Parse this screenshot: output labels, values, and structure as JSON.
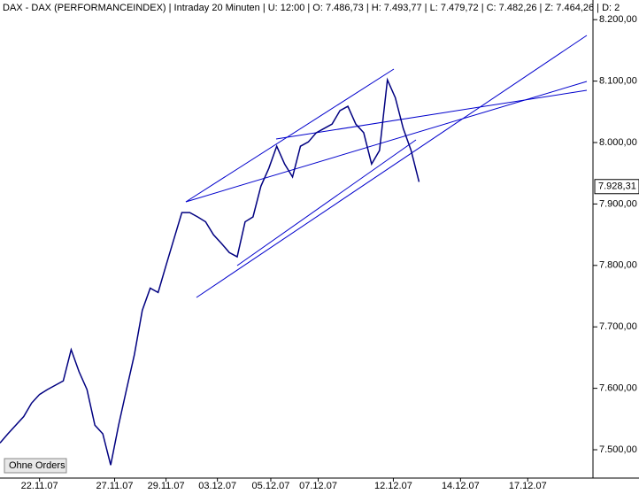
{
  "chart_data": {
    "type": "line",
    "title": "DAX - DAX (PERFORMANCEINDEX) | Intraday 20 Minuten | U: 12:00 | O: 7.486,73 | H: 7.493,77 | L: 7.479,72 | C: 7.482,26 | Z: 7.464,26 | D: 2",
    "button": "Ohne Orders",
    "x": [
      0,
      4,
      8,
      12,
      16,
      20,
      24,
      28,
      32,
      36,
      40,
      44,
      48,
      52,
      56,
      60,
      64,
      68,
      72,
      76,
      80,
      84,
      88,
      92,
      96,
      100,
      104,
      108,
      112,
      116,
      120,
      124,
      128,
      132,
      136,
      140,
      144,
      148,
      152,
      156,
      160,
      164,
      168,
      172,
      176,
      180,
      184,
      188,
      192,
      196,
      200,
      204,
      208,
      212
    ],
    "series": [
      {
        "name": "DAX",
        "color": "#000080",
        "values": [
          7511,
          7526,
          7540,
          7554,
          7576,
          7590,
          7598,
          7605,
          7612,
          7663,
          7627,
          7598,
          7540,
          7526,
          7475,
          7540,
          7598,
          7655,
          7727,
          7763,
          7756,
          7800,
          7843,
          7886,
          7886,
          7879,
          7871,
          7850,
          7836,
          7821,
          7814,
          7871,
          7879,
          7929,
          7958,
          7994,
          7965,
          7944,
          7994,
          8001,
          8016,
          8023,
          8030,
          8052,
          8059,
          8030,
          8016,
          7965,
          7987,
          8102,
          8073,
          8023,
          7987,
          7936
        ]
      }
    ],
    "last_value": {
      "value": 7928.31,
      "label": "7.928,31"
    },
    "xlim": [
      0,
      300
    ],
    "xticks": [
      {
        "value": 20,
        "label": "22.11.07"
      },
      {
        "value": 58,
        "label": "27.11.07"
      },
      {
        "value": 84,
        "label": "29.11.07"
      },
      {
        "value": 110,
        "label": "03.12.07"
      },
      {
        "value": 137,
        "label": "05.12.07"
      },
      {
        "value": 161,
        "label": "07.12.07"
      },
      {
        "value": 199,
        "label": "12.12.07"
      },
      {
        "value": 233,
        "label": "14.12.07"
      },
      {
        "value": 267,
        "label": "17.12.07"
      }
    ],
    "ylim": [
      7464,
      8232
    ],
    "yticks": [
      {
        "value": 7500,
        "label": "7.500,00"
      },
      {
        "value": 7600,
        "label": "7.600,00"
      },
      {
        "value": 7700,
        "label": "7.700,00"
      },
      {
        "value": 7800,
        "label": "7.800,00"
      },
      {
        "value": 7900,
        "label": "7.900,00"
      },
      {
        "value": 8000,
        "label": "8.000,00"
      },
      {
        "value": 8100,
        "label": "8.100,00"
      },
      {
        "value": 8200,
        "label": "8.200,00"
      }
    ]
  }
}
